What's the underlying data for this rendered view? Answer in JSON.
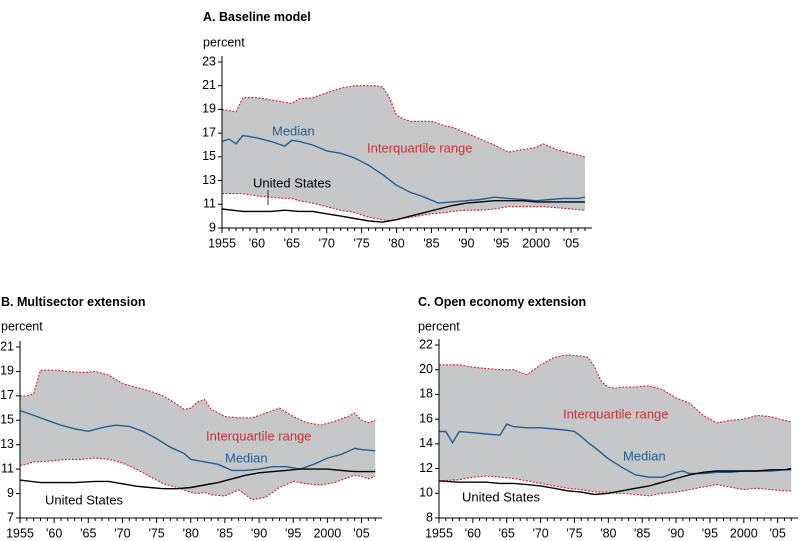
{
  "colors": {
    "band": "#c6c7c9",
    "band_edge": "#d3242b",
    "median": "#1f5f96",
    "us": "#000000",
    "axis": "#000000"
  },
  "chart_data": [
    {
      "type": "area",
      "title": "A. Baseline model",
      "ylabel": "percent",
      "ylim": [
        9,
        23
      ],
      "yticks": [
        "9",
        "11",
        "13",
        "15",
        "17",
        "19",
        "21",
        "23"
      ],
      "xlim": [
        1955,
        2008
      ],
      "xticks": [
        1955,
        1960,
        1965,
        1970,
        1975,
        1980,
        1985,
        1990,
        1995,
        2000,
        2005
      ],
      "xticklabels": [
        "1955",
        "'60",
        "'65",
        "'70",
        "'75",
        "'80",
        "'85",
        "'90",
        "'95",
        "2000",
        "'05"
      ],
      "annotations": {
        "band": "Interquartile range",
        "median": "Median",
        "us": "United States"
      },
      "series": [
        {
          "name": "Interquartile range",
          "role": "band",
          "x": [
            1955,
            1957,
            1958,
            1960,
            1962,
            1964,
            1965,
            1966,
            1968,
            1970,
            1972,
            1974,
            1976,
            1977,
            1978,
            1979,
            1980,
            1981,
            1982,
            1985,
            1987,
            1988,
            1990,
            1992,
            1994,
            1996,
            1998,
            2000,
            2001,
            2003,
            2005,
            2007
          ],
          "upper": [
            19.0,
            18.8,
            20.0,
            20.0,
            19.8,
            19.6,
            19.5,
            19.9,
            20.0,
            20.4,
            20.8,
            21.0,
            21.0,
            21.0,
            20.9,
            20.0,
            18.5,
            18.2,
            18.0,
            18.0,
            17.6,
            17.5,
            17.0,
            16.5,
            16.0,
            15.4,
            15.6,
            15.8,
            16.1,
            15.6,
            15.3,
            15.0
          ],
          "lower": [
            11.9,
            11.9,
            11.9,
            11.7,
            11.6,
            11.5,
            11.5,
            11.3,
            11.1,
            10.8,
            10.5,
            10.3,
            9.9,
            9.8,
            9.7,
            9.6,
            9.7,
            9.8,
            9.9,
            10.2,
            10.3,
            10.4,
            10.5,
            10.5,
            10.6,
            10.8,
            10.8,
            10.8,
            10.8,
            10.7,
            10.6,
            10.5
          ]
        },
        {
          "name": "Median",
          "x": [
            1955,
            1956,
            1957,
            1958,
            1960,
            1962,
            1964,
            1965,
            1966,
            1968,
            1970,
            1972,
            1974,
            1976,
            1978,
            1980,
            1982,
            1984,
            1986,
            1988,
            1990,
            1992,
            1994,
            1996,
            1998,
            2000,
            2002,
            2004,
            2006,
            2007
          ],
          "values": [
            16.3,
            16.5,
            16.1,
            16.8,
            16.6,
            16.3,
            15.9,
            16.4,
            16.3,
            16.0,
            15.5,
            15.3,
            14.9,
            14.3,
            13.5,
            12.6,
            12.0,
            11.6,
            11.1,
            11.2,
            11.3,
            11.4,
            11.6,
            11.5,
            11.4,
            11.3,
            11.4,
            11.5,
            11.5,
            11.6
          ]
        },
        {
          "name": "United States",
          "x": [
            1955,
            1958,
            1960,
            1962,
            1964,
            1966,
            1968,
            1970,
            1972,
            1974,
            1976,
            1978,
            1980,
            1982,
            1984,
            1986,
            1988,
            1990,
            1992,
            1994,
            1996,
            1998,
            2000,
            2002,
            2004,
            2006,
            2007
          ],
          "values": [
            10.6,
            10.4,
            10.4,
            10.4,
            10.5,
            10.4,
            10.4,
            10.2,
            10.0,
            9.8,
            9.6,
            9.5,
            9.7,
            10.0,
            10.3,
            10.6,
            10.9,
            11.1,
            11.2,
            11.3,
            11.3,
            11.3,
            11.2,
            11.2,
            11.2,
            11.2,
            11.2
          ]
        }
      ]
    },
    {
      "type": "area",
      "title": "B. Multisector extension",
      "ylabel": "percent",
      "ylim": [
        7,
        21
      ],
      "yticks": [
        "7",
        "9",
        "11",
        "13",
        "15",
        "17",
        "19",
        "21"
      ],
      "xlim": [
        1955,
        2008
      ],
      "xticks": [
        1955,
        1960,
        1965,
        1970,
        1975,
        1980,
        1985,
        1990,
        1995,
        2000,
        2005
      ],
      "xticklabels": [
        "1955",
        "'60",
        "'65",
        "'70",
        "'75",
        "'80",
        "'85",
        "'90",
        "'95",
        "2000",
        "'05"
      ],
      "annotations": {
        "band": "Interquartile range",
        "median": "Median",
        "us": "United States"
      },
      "series": [
        {
          "name": "Interquartile range",
          "role": "band",
          "x": [
            1955,
            1956,
            1957,
            1958,
            1960,
            1962,
            1964,
            1966,
            1968,
            1970,
            1972,
            1974,
            1976,
            1978,
            1979,
            1980,
            1981,
            1982,
            1983,
            1985,
            1987,
            1989,
            1991,
            1993,
            1995,
            1997,
            1999,
            2001,
            2003,
            2004,
            2005,
            2006,
            2007
          ],
          "upper": [
            17.0,
            17.0,
            17.2,
            19.1,
            19.1,
            19.0,
            18.9,
            19.0,
            18.7,
            18.0,
            17.7,
            17.4,
            17.0,
            16.3,
            15.9,
            16.0,
            16.5,
            16.7,
            15.9,
            15.3,
            15.2,
            15.2,
            15.6,
            16.0,
            15.3,
            14.8,
            14.6,
            14.9,
            15.3,
            15.6,
            15.0,
            14.8,
            15.0
          ],
          "lower": [
            11.3,
            11.4,
            11.6,
            11.6,
            11.7,
            11.8,
            11.8,
            11.9,
            11.8,
            11.5,
            11.0,
            10.4,
            9.8,
            9.5,
            9.3,
            9.1,
            9.0,
            9.1,
            8.9,
            8.8,
            9.3,
            8.5,
            8.7,
            9.5,
            10.0,
            9.8,
            9.7,
            9.9,
            10.3,
            10.5,
            10.4,
            10.2,
            10.4
          ]
        },
        {
          "name": "Median",
          "x": [
            1955,
            1957,
            1959,
            1961,
            1963,
            1965,
            1967,
            1969,
            1971,
            1973,
            1975,
            1977,
            1979,
            1980,
            1982,
            1984,
            1986,
            1988,
            1990,
            1992,
            1994,
            1996,
            1998,
            2000,
            2002,
            2004,
            2005,
            2007
          ],
          "values": [
            15.8,
            15.4,
            15.0,
            14.6,
            14.3,
            14.1,
            14.4,
            14.6,
            14.5,
            14.1,
            13.5,
            12.8,
            12.3,
            11.8,
            11.6,
            11.4,
            10.9,
            10.9,
            11.0,
            11.2,
            11.2,
            11.0,
            11.4,
            11.9,
            12.2,
            12.7,
            12.6,
            12.5
          ]
        },
        {
          "name": "United States",
          "x": [
            1955,
            1958,
            1960,
            1963,
            1966,
            1968,
            1970,
            1972,
            1974,
            1976,
            1978,
            1980,
            1982,
            1984,
            1986,
            1988,
            1990,
            1992,
            1994,
            1996,
            1998,
            2000,
            2002,
            2004,
            2006,
            2007
          ],
          "values": [
            10.1,
            9.9,
            9.9,
            9.9,
            10.0,
            10.0,
            9.8,
            9.6,
            9.5,
            9.4,
            9.4,
            9.5,
            9.7,
            9.9,
            10.2,
            10.5,
            10.7,
            10.8,
            10.9,
            11.0,
            11.0,
            11.0,
            10.9,
            10.8,
            10.8,
            10.8
          ]
        }
      ]
    },
    {
      "type": "area",
      "title": "C. Open economy extension",
      "ylabel": "percent",
      "ylim": [
        8,
        22
      ],
      "yticks": [
        "8",
        "10",
        "12",
        "14",
        "16",
        "18",
        "20",
        "22"
      ],
      "xlim": [
        1955,
        2008
      ],
      "xticks": [
        1955,
        1960,
        1965,
        1970,
        1975,
        1980,
        1985,
        1990,
        1995,
        2000,
        2005
      ],
      "xticklabels": [
        "1955",
        "'60",
        "'65",
        "'70",
        "'75",
        "'80",
        "'85",
        "'90",
        "'95",
        "2000",
        "'05"
      ],
      "annotations": {
        "band": "Interquartile range",
        "median": "Median",
        "us": "United States"
      },
      "series": [
        {
          "name": "Interquartile range",
          "role": "band",
          "x": [
            1955,
            1958,
            1960,
            1962,
            1964,
            1966,
            1968,
            1970,
            1972,
            1974,
            1976,
            1977,
            1978,
            1979,
            1980,
            1981,
            1982,
            1984,
            1986,
            1988,
            1990,
            1992,
            1994,
            1996,
            1998,
            2000,
            2002,
            2004,
            2006,
            2007
          ],
          "upper": [
            20.4,
            20.4,
            20.2,
            20.1,
            20.0,
            20.0,
            19.6,
            20.4,
            21.0,
            21.2,
            21.1,
            21.0,
            20.2,
            19.0,
            18.6,
            18.5,
            18.6,
            18.6,
            18.7,
            18.4,
            17.7,
            17.3,
            16.3,
            15.7,
            15.9,
            16.0,
            16.3,
            16.2,
            15.9,
            15.8
          ],
          "lower": [
            11.0,
            11.1,
            11.3,
            11.4,
            11.3,
            11.2,
            11.0,
            10.8,
            10.6,
            10.4,
            10.3,
            10.2,
            10.1,
            10.1,
            10.1,
            10.0,
            10.0,
            9.9,
            9.8,
            10.0,
            10.1,
            10.3,
            10.5,
            10.7,
            10.5,
            10.3,
            10.4,
            10.3,
            10.2,
            10.2
          ]
        },
        {
          "name": "Median",
          "x": [
            1955,
            1956,
            1957,
            1958,
            1960,
            1962,
            1964,
            1965,
            1966,
            1968,
            1970,
            1972,
            1974,
            1975,
            1976,
            1977,
            1978,
            1980,
            1982,
            1984,
            1986,
            1988,
            1990,
            1991,
            1992,
            1994,
            1996,
            1998,
            2000,
            2002,
            2004,
            2006,
            2007
          ],
          "values": [
            15.0,
            15.0,
            14.1,
            15.0,
            14.9,
            14.8,
            14.7,
            15.6,
            15.4,
            15.3,
            15.3,
            15.2,
            15.1,
            15.0,
            14.6,
            14.1,
            13.7,
            12.8,
            12.1,
            11.5,
            11.3,
            11.3,
            11.7,
            11.8,
            11.6,
            11.6,
            11.7,
            11.7,
            11.8,
            11.8,
            11.8,
            11.9,
            11.9
          ]
        },
        {
          "name": "United States",
          "x": [
            1955,
            1958,
            1960,
            1962,
            1964,
            1966,
            1968,
            1970,
            1972,
            1974,
            1976,
            1978,
            1980,
            1982,
            1984,
            1986,
            1988,
            1990,
            1992,
            1994,
            1996,
            1998,
            2000,
            2002,
            2004,
            2006,
            2007
          ],
          "values": [
            11.0,
            10.9,
            10.9,
            10.9,
            10.8,
            10.8,
            10.7,
            10.6,
            10.4,
            10.2,
            10.1,
            9.9,
            10.0,
            10.2,
            10.4,
            10.6,
            10.9,
            11.2,
            11.5,
            11.7,
            11.8,
            11.8,
            11.8,
            11.8,
            11.9,
            11.9,
            12.0
          ]
        }
      ]
    }
  ]
}
